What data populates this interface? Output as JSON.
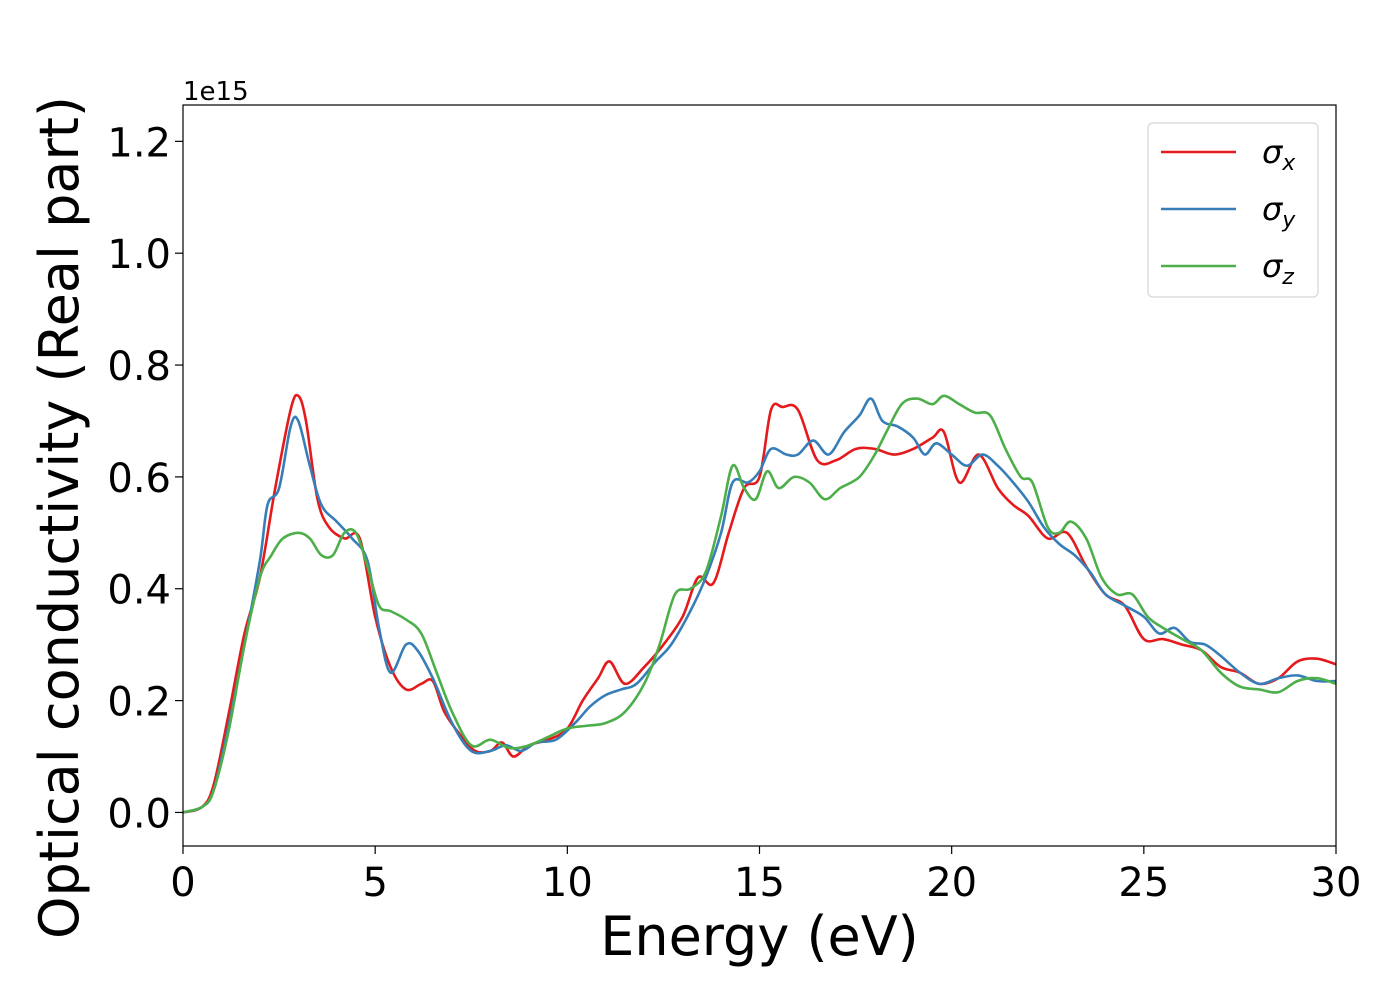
{
  "chart_data": {
    "type": "line",
    "title": "",
    "xlabel": "Energy (eV)",
    "ylabel": "Optical conductivity (Real part)",
    "y_offset_text": "1e15",
    "xlim": [
      0,
      30
    ],
    "ylim": [
      -0.06,
      1.265
    ],
    "x_ticks": [
      0,
      5,
      10,
      15,
      20,
      25,
      30
    ],
    "x_tick_labels": [
      "0",
      "5",
      "10",
      "15",
      "20",
      "25",
      "30"
    ],
    "y_ticks": [
      0.0,
      0.2,
      0.4,
      0.6,
      0.8,
      1.0,
      1.2
    ],
    "y_tick_labels": [
      "0.0",
      "0.2",
      "0.4",
      "0.6",
      "0.8",
      "1.0",
      "1.2"
    ],
    "grid": false,
    "legend_position": "top-right",
    "series": [
      {
        "name": "σx",
        "symbol": "σ",
        "subscript": "x",
        "color": "#e41a1c",
        "points": [
          [
            0,
            0
          ],
          [
            0.5,
            0.01
          ],
          [
            0.8,
            0.05
          ],
          [
            1.2,
            0.18
          ],
          [
            1.6,
            0.32
          ],
          [
            2.0,
            0.42
          ],
          [
            2.4,
            0.58
          ],
          [
            2.8,
            0.72
          ],
          [
            3.0,
            0.745
          ],
          [
            3.2,
            0.7
          ],
          [
            3.5,
            0.56
          ],
          [
            3.8,
            0.51
          ],
          [
            4.2,
            0.49
          ],
          [
            4.6,
            0.49
          ],
          [
            5.0,
            0.35
          ],
          [
            5.4,
            0.26
          ],
          [
            5.8,
            0.22
          ],
          [
            6.2,
            0.23
          ],
          [
            6.5,
            0.235
          ],
          [
            6.8,
            0.18
          ],
          [
            7.2,
            0.14
          ],
          [
            7.6,
            0.11
          ],
          [
            8.0,
            0.11
          ],
          [
            8.3,
            0.125
          ],
          [
            8.6,
            0.1
          ],
          [
            9.0,
            0.12
          ],
          [
            9.5,
            0.13
          ],
          [
            10.0,
            0.15
          ],
          [
            10.4,
            0.2
          ],
          [
            10.8,
            0.24
          ],
          [
            11.1,
            0.27
          ],
          [
            11.5,
            0.23
          ],
          [
            12.0,
            0.26
          ],
          [
            12.5,
            0.3
          ],
          [
            13.0,
            0.35
          ],
          [
            13.4,
            0.42
          ],
          [
            13.8,
            0.41
          ],
          [
            14.2,
            0.5
          ],
          [
            14.6,
            0.58
          ],
          [
            15.0,
            0.6
          ],
          [
            15.3,
            0.72
          ],
          [
            15.6,
            0.725
          ],
          [
            16.0,
            0.72
          ],
          [
            16.5,
            0.63
          ],
          [
            17.0,
            0.63
          ],
          [
            17.5,
            0.65
          ],
          [
            18.0,
            0.65
          ],
          [
            18.5,
            0.64
          ],
          [
            19.0,
            0.65
          ],
          [
            19.5,
            0.67
          ],
          [
            19.8,
            0.68
          ],
          [
            20.2,
            0.59
          ],
          [
            20.7,
            0.64
          ],
          [
            21.2,
            0.58
          ],
          [
            21.6,
            0.55
          ],
          [
            22.0,
            0.53
          ],
          [
            22.5,
            0.49
          ],
          [
            23.0,
            0.5
          ],
          [
            23.5,
            0.44
          ],
          [
            24.0,
            0.39
          ],
          [
            24.5,
            0.37
          ],
          [
            25.0,
            0.31
          ],
          [
            25.5,
            0.31
          ],
          [
            26.0,
            0.3
          ],
          [
            26.5,
            0.29
          ],
          [
            27.0,
            0.26
          ],
          [
            27.5,
            0.25
          ],
          [
            28.0,
            0.23
          ],
          [
            28.5,
            0.24
          ],
          [
            29.0,
            0.27
          ],
          [
            29.5,
            0.275
          ],
          [
            30.0,
            0.265
          ]
        ]
      },
      {
        "name": "σy",
        "symbol": "σ",
        "subscript": "y",
        "color": "#377eb8",
        "points": [
          [
            0,
            0
          ],
          [
            0.5,
            0.01
          ],
          [
            0.8,
            0.04
          ],
          [
            1.2,
            0.16
          ],
          [
            1.6,
            0.3
          ],
          [
            2.0,
            0.45
          ],
          [
            2.2,
            0.55
          ],
          [
            2.5,
            0.58
          ],
          [
            2.8,
            0.69
          ],
          [
            3.0,
            0.7
          ],
          [
            3.3,
            0.62
          ],
          [
            3.6,
            0.55
          ],
          [
            4.0,
            0.52
          ],
          [
            4.4,
            0.49
          ],
          [
            4.8,
            0.45
          ],
          [
            5.1,
            0.33
          ],
          [
            5.4,
            0.25
          ],
          [
            5.8,
            0.3
          ],
          [
            6.1,
            0.29
          ],
          [
            6.5,
            0.24
          ],
          [
            7.0,
            0.16
          ],
          [
            7.5,
            0.11
          ],
          [
            8.0,
            0.11
          ],
          [
            8.4,
            0.12
          ],
          [
            8.8,
            0.11
          ],
          [
            9.2,
            0.125
          ],
          [
            9.7,
            0.13
          ],
          [
            10.2,
            0.16
          ],
          [
            10.6,
            0.19
          ],
          [
            11.0,
            0.21
          ],
          [
            11.4,
            0.22
          ],
          [
            11.8,
            0.23
          ],
          [
            12.3,
            0.27
          ],
          [
            12.7,
            0.3
          ],
          [
            13.2,
            0.36
          ],
          [
            13.6,
            0.42
          ],
          [
            14.0,
            0.5
          ],
          [
            14.3,
            0.59
          ],
          [
            14.7,
            0.59
          ],
          [
            15.0,
            0.61
          ],
          [
            15.3,
            0.65
          ],
          [
            15.7,
            0.64
          ],
          [
            16.0,
            0.64
          ],
          [
            16.4,
            0.665
          ],
          [
            16.8,
            0.64
          ],
          [
            17.2,
            0.68
          ],
          [
            17.6,
            0.71
          ],
          [
            17.9,
            0.74
          ],
          [
            18.2,
            0.7
          ],
          [
            18.6,
            0.69
          ],
          [
            19.0,
            0.67
          ],
          [
            19.3,
            0.64
          ],
          [
            19.6,
            0.66
          ],
          [
            20.0,
            0.64
          ],
          [
            20.4,
            0.62
          ],
          [
            20.8,
            0.64
          ],
          [
            21.2,
            0.62
          ],
          [
            21.6,
            0.59
          ],
          [
            22.0,
            0.555
          ],
          [
            22.4,
            0.51
          ],
          [
            22.8,
            0.48
          ],
          [
            23.2,
            0.46
          ],
          [
            23.6,
            0.43
          ],
          [
            24.0,
            0.39
          ],
          [
            24.5,
            0.37
          ],
          [
            25.0,
            0.35
          ],
          [
            25.4,
            0.32
          ],
          [
            25.8,
            0.33
          ],
          [
            26.2,
            0.305
          ],
          [
            26.6,
            0.3
          ],
          [
            27.0,
            0.28
          ],
          [
            27.5,
            0.25
          ],
          [
            28.0,
            0.23
          ],
          [
            28.5,
            0.24
          ],
          [
            29.0,
            0.245
          ],
          [
            29.5,
            0.235
          ],
          [
            30.0,
            0.235
          ]
        ]
      },
      {
        "name": "σz",
        "symbol": "σ",
        "subscript": "z",
        "color": "#4daf4a",
        "points": [
          [
            0,
            0
          ],
          [
            0.5,
            0.01
          ],
          [
            0.8,
            0.04
          ],
          [
            1.2,
            0.15
          ],
          [
            1.6,
            0.3
          ],
          [
            2.0,
            0.42
          ],
          [
            2.3,
            0.46
          ],
          [
            2.6,
            0.49
          ],
          [
            3.0,
            0.5
          ],
          [
            3.3,
            0.49
          ],
          [
            3.6,
            0.46
          ],
          [
            3.9,
            0.46
          ],
          [
            4.2,
            0.5
          ],
          [
            4.5,
            0.5
          ],
          [
            4.8,
            0.44
          ],
          [
            5.1,
            0.37
          ],
          [
            5.4,
            0.36
          ],
          [
            5.8,
            0.345
          ],
          [
            6.2,
            0.32
          ],
          [
            6.6,
            0.25
          ],
          [
            7.0,
            0.18
          ],
          [
            7.5,
            0.12
          ],
          [
            8.0,
            0.13
          ],
          [
            8.5,
            0.115
          ],
          [
            9.0,
            0.12
          ],
          [
            9.5,
            0.135
          ],
          [
            10.0,
            0.15
          ],
          [
            10.5,
            0.155
          ],
          [
            11.0,
            0.16
          ],
          [
            11.5,
            0.18
          ],
          [
            12.0,
            0.23
          ],
          [
            12.4,
            0.3
          ],
          [
            12.8,
            0.39
          ],
          [
            13.2,
            0.4
          ],
          [
            13.6,
            0.43
          ],
          [
            14.0,
            0.53
          ],
          [
            14.3,
            0.62
          ],
          [
            14.6,
            0.58
          ],
          [
            14.9,
            0.56
          ],
          [
            15.2,
            0.61
          ],
          [
            15.5,
            0.58
          ],
          [
            15.9,
            0.6
          ],
          [
            16.3,
            0.59
          ],
          [
            16.7,
            0.56
          ],
          [
            17.1,
            0.58
          ],
          [
            17.6,
            0.6
          ],
          [
            18.0,
            0.64
          ],
          [
            18.3,
            0.68
          ],
          [
            18.7,
            0.73
          ],
          [
            19.1,
            0.74
          ],
          [
            19.5,
            0.73
          ],
          [
            19.8,
            0.745
          ],
          [
            20.2,
            0.73
          ],
          [
            20.6,
            0.715
          ],
          [
            21.0,
            0.71
          ],
          [
            21.4,
            0.65
          ],
          [
            21.8,
            0.6
          ],
          [
            22.1,
            0.59
          ],
          [
            22.5,
            0.51
          ],
          [
            22.8,
            0.5
          ],
          [
            23.1,
            0.52
          ],
          [
            23.5,
            0.49
          ],
          [
            23.9,
            0.42
          ],
          [
            24.3,
            0.39
          ],
          [
            24.7,
            0.39
          ],
          [
            25.1,
            0.35
          ],
          [
            25.5,
            0.33
          ],
          [
            26.0,
            0.31
          ],
          [
            26.5,
            0.29
          ],
          [
            27.0,
            0.25
          ],
          [
            27.5,
            0.225
          ],
          [
            28.0,
            0.22
          ],
          [
            28.5,
            0.215
          ],
          [
            29.0,
            0.235
          ],
          [
            29.5,
            0.24
          ],
          [
            30.0,
            0.23
          ]
        ]
      }
    ]
  }
}
